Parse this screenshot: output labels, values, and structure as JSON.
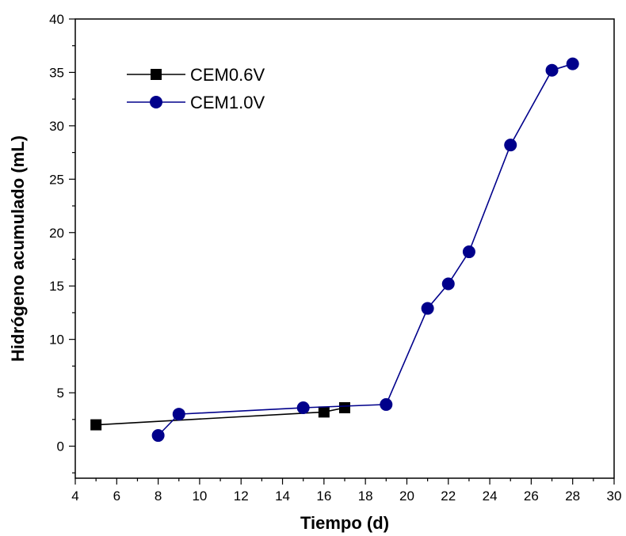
{
  "chart_data": {
    "type": "line",
    "xlabel": "Tiempo (d)",
    "ylabel": "Hidrógeno acumulado (mL)",
    "xlim": [
      4,
      30
    ],
    "ylim": [
      -3,
      40
    ],
    "x_ticks": [
      4,
      6,
      8,
      10,
      12,
      14,
      16,
      18,
      20,
      22,
      24,
      26,
      28,
      30
    ],
    "y_ticks": [
      0,
      5,
      10,
      15,
      20,
      25,
      30,
      35,
      40
    ],
    "grid": false,
    "legend_position": "top-left",
    "series": [
      {
        "name": "CEM0.6V",
        "marker": "square",
        "color": "#000000",
        "x": [
          5,
          16,
          17
        ],
        "y": [
          2.0,
          3.2,
          3.6
        ]
      },
      {
        "name": "CEM1.0V",
        "marker": "circle",
        "color": "#00008B",
        "x": [
          8,
          9,
          15,
          19,
          21,
          22,
          23,
          25,
          27,
          28
        ],
        "y": [
          1.0,
          3.0,
          3.6,
          3.9,
          12.9,
          15.2,
          18.2,
          28.2,
          35.2,
          35.8
        ]
      }
    ]
  }
}
